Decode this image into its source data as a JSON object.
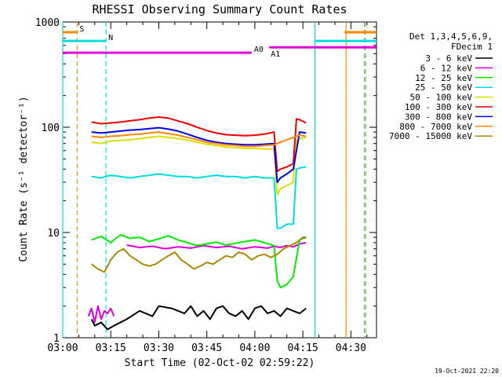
{
  "chart_data": {
    "type": "line",
    "title": "RHESSI Observing Summary Count Rates",
    "xlabel": "Start Time (02-Oct-02 02:59:22)",
    "ylabel": "Count Rate (s⁻¹ detector⁻¹)",
    "y_scale": "log",
    "ylim": [
      1,
      1000
    ],
    "xlim_minutes": [
      0,
      98
    ],
    "x_ticks": [
      {
        "min": 0,
        "label": "03:00"
      },
      {
        "min": 15,
        "label": "03:15"
      },
      {
        "min": 30,
        "label": "03:30"
      },
      {
        "min": 45,
        "label": "03:45"
      },
      {
        "min": 60,
        "label": "04:00"
      },
      {
        "min": 75,
        "label": "04:15"
      },
      {
        "min": 90,
        "label": "04:30"
      }
    ],
    "y_ticks": [
      {
        "value": 1,
        "label": "1"
      },
      {
        "value": 10,
        "label": "10"
      },
      {
        "value": 100,
        "label": "100"
      },
      {
        "value": 1000,
        "label": "1000"
      }
    ],
    "legend_header": [
      "Det 1,3,4,5,6,9,",
      "FDecim 1"
    ],
    "series": [
      {
        "name": "3 - 6 keV",
        "color": "#000000",
        "segments": [
          {
            "x": [
              9,
              10,
              12,
              14,
              16,
              20,
              24,
              28,
              30,
              34,
              38,
              40,
              42,
              44,
              46,
              48,
              50,
              52,
              54,
              56,
              58,
              60,
              62,
              64,
              66,
              68,
              70,
              72,
              74,
              76
            ],
            "y": [
              1.5,
              1.3,
              1.4,
              1.2,
              1.3,
              1.5,
              1.8,
              1.6,
              2.0,
              1.9,
              1.7,
              2.0,
              1.6,
              1.8,
              1.5,
              1.9,
              2.0,
              1.7,
              1.6,
              1.8,
              1.5,
              1.9,
              2.0,
              1.7,
              1.8,
              1.6,
              1.9,
              1.8,
              1.7,
              1.9
            ]
          }
        ]
      },
      {
        "name": "6 - 12 keV",
        "color": "#dd00dd",
        "segments": [
          {
            "x": [
              8,
              9,
              10,
              11,
              12,
              13,
              14,
              15,
              16
            ],
            "y": [
              1.6,
              1.9,
              1.4,
              2.0,
              1.5,
              1.8,
              1.7,
              1.9,
              1.6
            ]
          },
          {
            "x": [
              20,
              24,
              28,
              32,
              36,
              40,
              44,
              48,
              52,
              56,
              60,
              64,
              66,
              68,
              70,
              72,
              74,
              76
            ],
            "y": [
              7.6,
              7.2,
              7.4,
              7.0,
              7.3,
              7.1,
              7.5,
              7.2,
              7.4,
              7.0,
              7.3,
              7.1,
              7.4,
              7.2,
              7.5,
              7.3,
              7.8,
              8.0
            ]
          }
        ]
      },
      {
        "name": "12 - 25 keV",
        "color": "#00ee00",
        "segments": [
          {
            "x": [
              9,
              12,
              15,
              18,
              21,
              24,
              27,
              30,
              33,
              36,
              39,
              42,
              45,
              48,
              51,
              54,
              57,
              60,
              63,
              66,
              67,
              68,
              70,
              72,
              74,
              76
            ],
            "y": [
              8.5,
              9.2,
              8.0,
              9.5,
              8.8,
              9.0,
              8.2,
              8.7,
              9.3,
              8.5,
              8.0,
              7.5,
              7.8,
              8.1,
              7.6,
              7.9,
              8.2,
              8.5,
              8.0,
              7.5,
              3.5,
              3.0,
              3.2,
              3.8,
              8.5,
              9.0
            ]
          }
        ]
      },
      {
        "name": "25 - 50 keV",
        "color": "#00dddd",
        "segments": [
          {
            "x": [
              9,
              12,
              15,
              18,
              21,
              24,
              27,
              30,
              33,
              36,
              39,
              42,
              45,
              48,
              51,
              54,
              57,
              60,
              63,
              66,
              67,
              68,
              70,
              72,
              73,
              74,
              76
            ],
            "y": [
              34,
              33,
              35,
              34,
              33,
              34,
              35,
              36,
              35,
              34,
              34,
              33,
              34,
              35,
              34,
              34,
              33,
              34,
              33,
              33,
              11,
              11,
              12,
              12,
              40,
              41,
              42
            ]
          }
        ]
      },
      {
        "name": "50 - 100 keV",
        "color": "#dddd00",
        "segments": [
          {
            "x": [
              9,
              12,
              15,
              18,
              21,
              24,
              27,
              30,
              33,
              36,
              39,
              42,
              45,
              48,
              51,
              54,
              57,
              60,
              63,
              66,
              67,
              68,
              70,
              72,
              73,
              74,
              76
            ],
            "y": [
              72,
              70,
              74,
              75,
              76,
              78,
              80,
              82,
              80,
              78,
              75,
              72,
              69,
              67,
              65,
              64,
              63,
              63,
              62,
              62,
              23,
              26,
              28,
              30,
              75,
              78,
              80
            ]
          }
        ]
      },
      {
        "name": "100 - 300 keV",
        "color": "#ee0000",
        "segments": [
          {
            "x": [
              9,
              12,
              15,
              18,
              21,
              24,
              27,
              30,
              33,
              36,
              39,
              42,
              45,
              48,
              51,
              54,
              57,
              60,
              63,
              66,
              67,
              68,
              70,
              72,
              73,
              74,
              76
            ],
            "y": [
              112,
              108,
              110,
              112,
              115,
              118,
              122,
              125,
              122,
              115,
              108,
              100,
              93,
              88,
              85,
              84,
              83,
              84,
              86,
              90,
              38,
              40,
              42,
              45,
              120,
              118,
              110
            ]
          }
        ]
      },
      {
        "name": "300 - 800 keV",
        "color": "#0000ee",
        "segments": [
          {
            "x": [
              9,
              12,
              15,
              18,
              21,
              24,
              27,
              30,
              33,
              36,
              39,
              42,
              45,
              48,
              51,
              54,
              57,
              60,
              63,
              66,
              67,
              68,
              70,
              72,
              74,
              76
            ],
            "y": [
              90,
              88,
              90,
              92,
              94,
              95,
              97,
              99,
              96,
              92,
              86,
              80,
              75,
              72,
              70,
              69,
              68,
              68,
              69,
              70,
              30,
              33,
              36,
              40,
              90,
              88
            ]
          }
        ]
      },
      {
        "name": "800 - 7000 keV",
        "color": "#ff8800",
        "segments": [
          {
            "x": [
              9,
              12,
              15,
              18,
              21,
              24,
              27,
              30,
              33,
              36,
              39,
              42,
              45,
              48,
              51,
              54,
              57,
              60,
              63,
              66,
              68,
              70,
              72,
              74,
              76
            ],
            "y": [
              82,
              80,
              82,
              83,
              85,
              86,
              88,
              90,
              87,
              84,
              80,
              76,
              72,
              70,
              68,
              67,
              66,
              66,
              67,
              68,
              72,
              76,
              80,
              84,
              82
            ]
          }
        ]
      },
      {
        "name": "7000 - 15000 keV",
        "color": "#aa8800",
        "segments": [
          {
            "x": [
              9,
              11,
              13,
              15,
              17,
              19,
              21,
              23,
              25,
              27,
              29,
              31,
              33,
              35,
              37,
              39,
              41,
              43,
              45,
              47,
              49,
              51,
              53,
              55,
              57,
              59,
              61,
              63,
              65,
              67,
              69,
              71,
              73,
              75,
              76
            ],
            "y": [
              5.0,
              4.5,
              4.2,
              5.5,
              6.5,
              7.0,
              6.0,
              5.5,
              5.0,
              4.8,
              5.0,
              5.5,
              6.0,
              6.5,
              5.5,
              5.0,
              4.5,
              4.8,
              5.2,
              5.0,
              5.5,
              6.0,
              5.8,
              6.5,
              6.2,
              5.5,
              6.0,
              6.2,
              5.8,
              6.2,
              7.0,
              7.5,
              8.0,
              9.0,
              9.0
            ]
          }
        ]
      }
    ],
    "annotations": [
      {
        "label": "S",
        "color": "#ff8800",
        "bar_x": [
          0,
          4.5
        ],
        "value": 800
      },
      {
        "label": "N",
        "color": "#00dddd",
        "bar_x": [
          0,
          13.5
        ],
        "value": 660
      },
      {
        "label": "A0",
        "color": "#dd00dd",
        "bar_x": [
          0,
          59
        ],
        "value": 510
      },
      {
        "label": "A1",
        "color": "#dd00dd",
        "bar_x": [
          64.5,
          98
        ],
        "value": 575
      }
    ],
    "right_bars": [
      {
        "color": "#00dddd",
        "bar_x": [
          79,
          98
        ],
        "value": 660
      },
      {
        "color": "#ff8800",
        "bar_x": [
          88,
          98
        ],
        "value": 800
      }
    ],
    "vertical_lines": [
      {
        "x": 4.5,
        "color": "#ff8800",
        "dashed": true
      },
      {
        "x": 13.5,
        "color": "#00dddd",
        "dashed": true
      },
      {
        "x": 0,
        "color": "#00dddd",
        "dashed": false
      },
      {
        "x": 78.8,
        "color": "#00dddd",
        "dashed": false
      },
      {
        "x": 88.5,
        "color": "#ff8800",
        "dashed": false
      },
      {
        "x": 94.2,
        "color": "#00dddd",
        "dashed": true
      },
      {
        "x": 94.6,
        "color": "#ff8800",
        "dashed": true
      }
    ],
    "timestamp": "19-Oct-2021 22:20"
  }
}
